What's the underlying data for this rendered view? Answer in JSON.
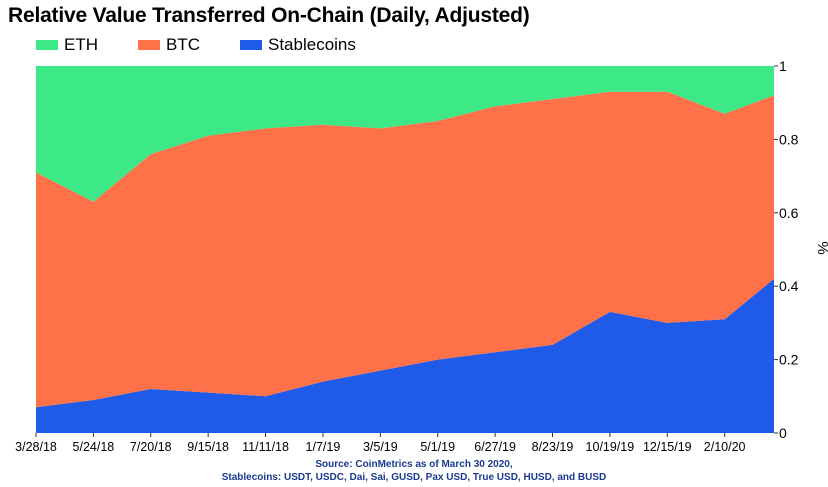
{
  "chart_data": {
    "type": "area",
    "title": "Relative Value Transferred On-Chain (Daily, Adjusted)",
    "ylabel": "%",
    "ylim": [
      0,
      1
    ],
    "yticks": [
      "0",
      "0.2",
      "0.4",
      "0.6",
      "0.8",
      "1"
    ],
    "xticks": [
      "3/28/18",
      "5/24/18",
      "7/20/18",
      "9/15/18",
      "11/11/18",
      "1/7/19",
      "3/5/19",
      "5/1/19",
      "6/27/19",
      "8/23/19",
      "10/19/19",
      "12/15/19",
      "2/10/20"
    ],
    "legend_position": "top-left",
    "stacked": true,
    "x": [
      "2018-03-28",
      "2018-05-24",
      "2018-07-20",
      "2018-09-15",
      "2018-11-11",
      "2019-01-07",
      "2019-03-05",
      "2019-05-01",
      "2019-06-27",
      "2019-08-23",
      "2019-10-19",
      "2019-12-15",
      "2020-02-10",
      "2020-03-30"
    ],
    "series": [
      {
        "name": "Stablecoins",
        "color": "#1f5ae8",
        "values": [
          0.07,
          0.09,
          0.12,
          0.11,
          0.1,
          0.14,
          0.17,
          0.2,
          0.22,
          0.24,
          0.33,
          0.3,
          0.31,
          0.42
        ]
      },
      {
        "name": "BTC",
        "color": "#ff7148",
        "values": [
          0.64,
          0.54,
          0.64,
          0.7,
          0.73,
          0.7,
          0.66,
          0.65,
          0.67,
          0.67,
          0.6,
          0.63,
          0.56,
          0.5
        ]
      },
      {
        "name": "ETH",
        "color": "#3de887",
        "values": [
          0.29,
          0.37,
          0.24,
          0.19,
          0.17,
          0.16,
          0.17,
          0.15,
          0.11,
          0.09,
          0.07,
          0.07,
          0.13,
          0.08
        ]
      }
    ]
  },
  "legend": [
    {
      "name": "ETH",
      "color": "#3de887"
    },
    {
      "name": "BTC",
      "color": "#ff7148"
    },
    {
      "name": "Stablecoins",
      "color": "#1f5ae8"
    }
  ],
  "source": {
    "line1": "Source: CoinMetrics as of March 30 2020,",
    "line2": "Stablecoins: USDT, USDC, Dai, Sai, GUSD, Pax USD, True USD, HUSD, and BUSD"
  }
}
